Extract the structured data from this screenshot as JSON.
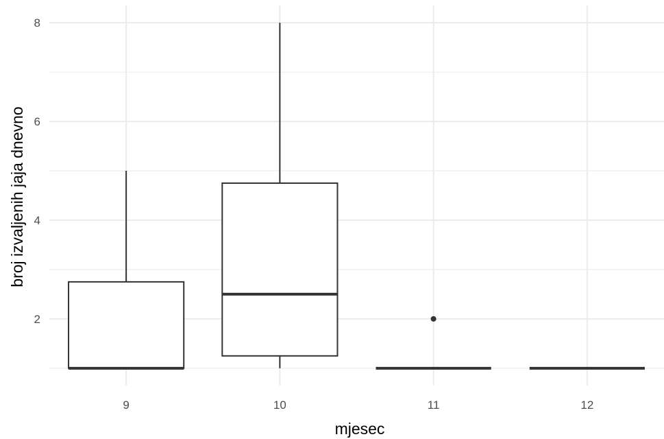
{
  "chart_data": {
    "type": "boxplot",
    "title": "",
    "xlabel": "mjesec",
    "ylabel": "broj izvaljenih jaja dnevno",
    "categories": [
      "9",
      "10",
      "11",
      "12"
    ],
    "boxes": [
      {
        "category": "9",
        "lower_whisker": 1,
        "q1": 1,
        "median": 1,
        "q3": 2.75,
        "upper_whisker": 5,
        "outliers": []
      },
      {
        "category": "10",
        "lower_whisker": 1,
        "q1": 1.25,
        "median": 2.5,
        "q3": 4.75,
        "upper_whisker": 8,
        "outliers": []
      },
      {
        "category": "11",
        "lower_whisker": 1,
        "q1": 1,
        "median": 1,
        "q3": 1,
        "upper_whisker": 1,
        "outliers": [
          2
        ]
      },
      {
        "category": "12",
        "lower_whisker": 1,
        "q1": 1,
        "median": 1,
        "q3": 1,
        "upper_whisker": 1,
        "outliers": []
      }
    ],
    "yticks": [
      2,
      4,
      6,
      8
    ],
    "ylim": [
      0.65,
      8.35
    ],
    "grid": true,
    "colors": {
      "grid": "#ebebeb",
      "box": "#333333",
      "fill": "#ffffff",
      "tick_text": "#4d4d4d"
    }
  }
}
